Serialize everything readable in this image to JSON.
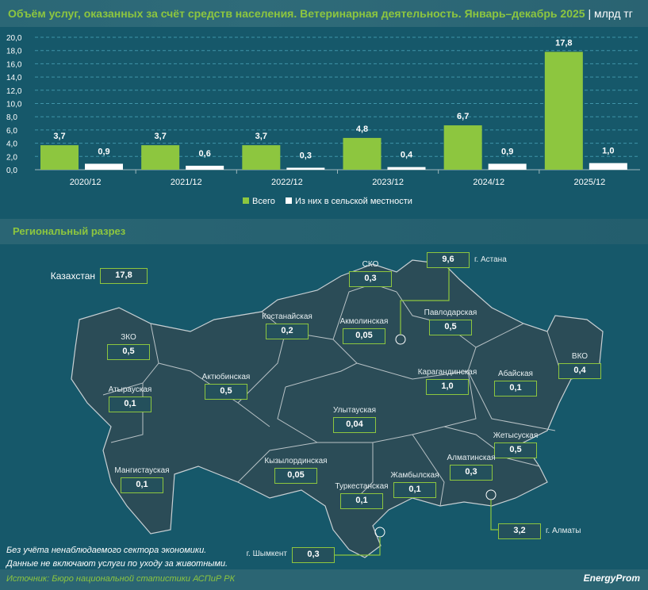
{
  "header": {
    "title": "Объём услуг, оказанных за счёт средств населения. Ветеринарная деятельность. Январь–декабрь 2025",
    "unit": "| млрд тг"
  },
  "chart_data": {
    "type": "bar",
    "categories": [
      "2020/12",
      "2021/12",
      "2022/12",
      "2023/12",
      "2024/12",
      "2025/12"
    ],
    "series": [
      {
        "name": "Всего",
        "color": "#8dc63f",
        "values": [
          3.7,
          3.7,
          3.7,
          4.8,
          6.7,
          17.8
        ]
      },
      {
        "name": "Из них в сельской местности",
        "color": "#ffffff",
        "values": [
          0.9,
          0.6,
          0.3,
          0.4,
          0.9,
          1.0
        ]
      }
    ],
    "yticks": [
      "0,0",
      "2,0",
      "4,0",
      "6,0",
      "8,0",
      "10,0",
      "12,0",
      "14,0",
      "16,0",
      "18,0",
      "20,0"
    ],
    "ylim": [
      0,
      20
    ],
    "grid": true,
    "legend": "bottom"
  },
  "section": {
    "title": "Региональный разрез"
  },
  "regions": [
    {
      "name": "Казахстан",
      "value": "17,8"
    },
    {
      "name": "СКО",
      "value": "0,3"
    },
    {
      "name": "г. Астана",
      "value": "9,6"
    },
    {
      "name": "Костанайская",
      "value": "0,2"
    },
    {
      "name": "Акмолинская",
      "value": "0,05"
    },
    {
      "name": "Павлодарская",
      "value": "0,5"
    },
    {
      "name": "ЗКО",
      "value": "0,5"
    },
    {
      "name": "ВКО",
      "value": "0,4"
    },
    {
      "name": "Актюбинская",
      "value": "0,5"
    },
    {
      "name": "Карагандинская",
      "value": "1,0"
    },
    {
      "name": "Абайская",
      "value": "0,1"
    },
    {
      "name": "Атырауская",
      "value": "0,1"
    },
    {
      "name": "Улытауская",
      "value": "0,04"
    },
    {
      "name": "Жетысуская",
      "value": "0,5"
    },
    {
      "name": "Кызылординская",
      "value": "0,05"
    },
    {
      "name": "Алматинская",
      "value": "0,3"
    },
    {
      "name": "Мангистауская",
      "value": "0,1"
    },
    {
      "name": "Жамбылская",
      "value": "0,1"
    },
    {
      "name": "Туркестанская",
      "value": "0,1"
    },
    {
      "name": "г. Алматы",
      "value": "3,2"
    },
    {
      "name": "г. Шымкент",
      "value": "0,3"
    }
  ],
  "notes": [
    "Без учёта ненаблюдаемого сектора экономики.",
    "Данные не включают услуги по уходу за животными."
  ],
  "footer": {
    "source": "Источник: Бюро национальной статистики АСПиР РК",
    "logo": "EnergyProm"
  }
}
